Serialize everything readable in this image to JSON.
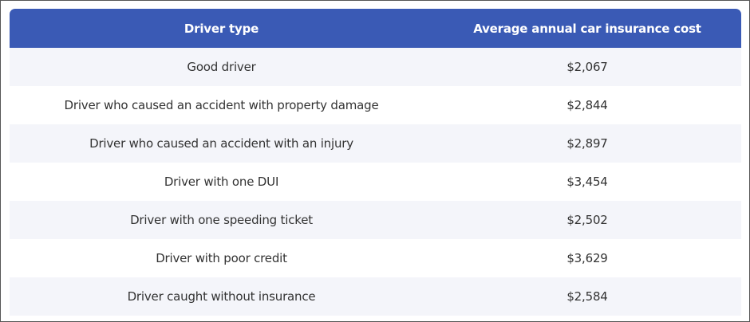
{
  "table": {
    "header_color": "#3a5ab5",
    "alt_row_color": "#f4f5fa",
    "columns": [
      "Driver type",
      "Average annual car insurance cost"
    ],
    "rows": [
      {
        "driver_type": "Good driver",
        "cost": "$2,067"
      },
      {
        "driver_type": "Driver who caused an accident with property damage",
        "cost": "$2,844"
      },
      {
        "driver_type": "Driver who caused an accident with an injury",
        "cost": "$2,897"
      },
      {
        "driver_type": "Driver with one DUI",
        "cost": "$3,454"
      },
      {
        "driver_type": "Driver with one speeding ticket",
        "cost": "$2,502"
      },
      {
        "driver_type": "Driver with poor credit",
        "cost": "$3,629"
      },
      {
        "driver_type": "Driver caught without insurance",
        "cost": "$2,584"
      }
    ]
  }
}
